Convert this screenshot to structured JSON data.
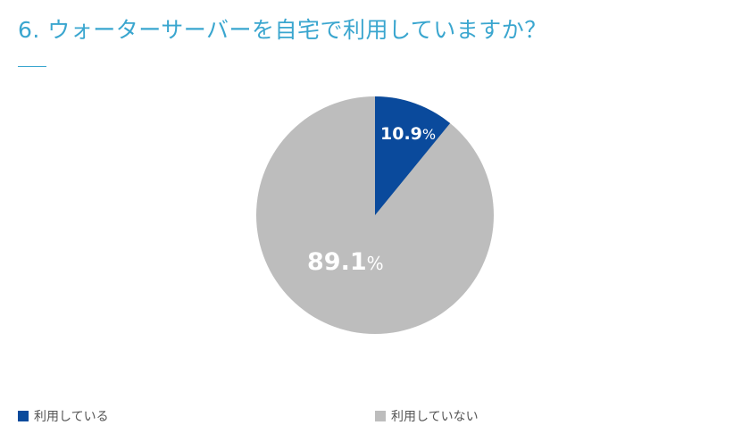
{
  "title": "6. ウォーターサーバーを自宅で利用していますか？",
  "colors": {
    "title": "#3aa6cf",
    "using": "#0a4a9c",
    "not_using": "#bdbdbd"
  },
  "labels": {
    "using_value": "10.9",
    "not_using_value": "89.1",
    "percent": "%"
  },
  "legend": [
    {
      "label": "利用している",
      "color": "#0a4a9c"
    },
    {
      "label": "利用していない",
      "color": "#bdbdbd"
    }
  ],
  "chart_data": {
    "type": "pie",
    "title": "6. ウォーターサーバーを自宅で利用していますか？",
    "categories": [
      "利用している",
      "利用していない"
    ],
    "values": [
      10.9,
      89.1
    ],
    "unit": "%",
    "colors": [
      "#0a4a9c",
      "#bdbdbd"
    ],
    "start_angle": "12 o'clock, clockwise",
    "legend_position": "bottom"
  }
}
